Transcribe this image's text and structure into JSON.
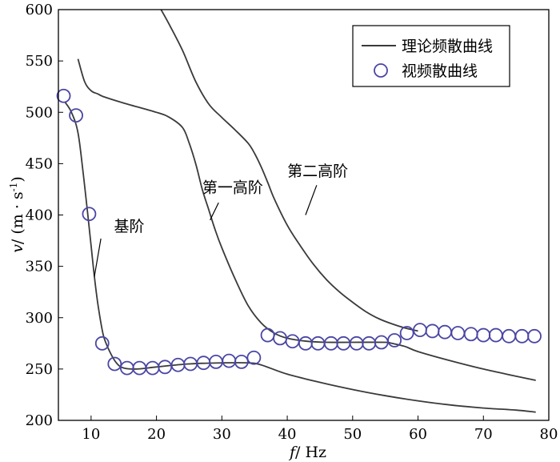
{
  "chart_data": {
    "type": "line",
    "title": "",
    "xlabel_var": "f",
    "xlabel_unit": "/ Hz",
    "ylabel_var": "v",
    "ylabel_unit_pre": "/ (m · s",
    "ylabel_unit_sup": "-1",
    "ylabel_unit_post": ")",
    "xlim": [
      5,
      80
    ],
    "ylim": [
      200,
      600
    ],
    "xticks": [
      10,
      20,
      30,
      40,
      50,
      60,
      70,
      80
    ],
    "yticks": [
      200,
      250,
      300,
      350,
      400,
      450,
      500,
      550,
      600
    ],
    "legend": {
      "position": "top-right",
      "entries": [
        "理论频散曲线",
        "视频散曲线"
      ]
    },
    "series": [
      {
        "name": "理论频散曲线 基阶",
        "style": "line",
        "x": [
          6,
          7,
          8,
          8.8,
          9.5,
          10,
          10.5,
          11,
          11.5,
          12,
          13,
          14,
          15,
          17,
          20,
          25,
          30,
          34,
          36,
          40,
          45,
          50,
          55,
          60,
          65,
          70,
          75,
          78
        ],
        "y": [
          510,
          500,
          480,
          440,
          400,
          370,
          340,
          315,
          295,
          280,
          265,
          255,
          251,
          250,
          252,
          255,
          256,
          256,
          254,
          245,
          237,
          230,
          224,
          219,
          215,
          212,
          210,
          208
        ]
      },
      {
        "name": "理论频散曲线 第一高阶",
        "style": "line",
        "x": [
          8,
          9,
          10,
          11,
          12,
          15,
          20,
          22,
          24,
          25,
          26,
          27,
          28,
          29,
          30,
          32,
          34,
          36,
          38,
          40,
          43,
          46,
          50,
          55,
          56,
          58,
          60,
          65,
          70,
          75,
          78
        ],
        "y": [
          552,
          530,
          521,
          518,
          515,
          509,
          500,
          495,
          485,
          470,
          450,
          425,
          405,
          385,
          368,
          338,
          312,
          295,
          285,
          280,
          277,
          276,
          276,
          276,
          275,
          272,
          267,
          258,
          250,
          243,
          239
        ]
      },
      {
        "name": "理论频散曲线 第二高阶",
        "style": "line",
        "x": [
          20.7,
          22,
          24,
          26,
          28,
          30,
          32,
          34,
          35,
          36,
          37,
          38,
          40,
          42,
          44,
          46,
          48,
          50,
          52,
          54,
          56,
          58,
          60
        ],
        "y": [
          600,
          585,
          560,
          530,
          508,
          495,
          483,
          470,
          460,
          447,
          432,
          416,
          390,
          370,
          352,
          337,
          325,
          315,
          306,
          299,
          294,
          290,
          287
        ]
      },
      {
        "name": "视频散曲线",
        "style": "markers",
        "x": [
          5.8,
          7.7,
          9.7,
          11.7,
          13.6,
          15.5,
          17.4,
          19.4,
          21.3,
          23.3,
          25.2,
          27.2,
          29.1,
          31.1,
          33,
          34.9,
          37,
          38.9,
          40.8,
          42.8,
          44.7,
          46.7,
          48.6,
          50.6,
          52.5,
          54.4,
          56.4,
          58.3,
          60.3,
          62.2,
          64.1,
          66.1,
          68.1,
          70,
          71.9,
          73.9,
          75.9,
          77.8
        ],
        "y": [
          516,
          497,
          401,
          275,
          255,
          251,
          251,
          251,
          252,
          254,
          255,
          256,
          257,
          258,
          257,
          261,
          283,
          280,
          277,
          275,
          275,
          275,
          275,
          275,
          275,
          276,
          278,
          285,
          288,
          287,
          286,
          285,
          284,
          283,
          283,
          282,
          282,
          282
        ]
      }
    ],
    "annotations": [
      {
        "text": "基阶",
        "x": 13.5,
        "y": 384
      },
      {
        "text": "第一高阶",
        "x": 27,
        "y": 422
      },
      {
        "text": "第二高阶",
        "x": 40,
        "y": 438
      }
    ],
    "annotation_leaders": [
      {
        "from": [
          11.5,
          377
        ],
        "to": [
          10.5,
          340
        ]
      },
      {
        "from": [
          29.5,
          412
        ],
        "to": [
          28.2,
          395
        ]
      },
      {
        "from": [
          44.5,
          429
        ],
        "to": [
          42.8,
          400
        ]
      }
    ]
  },
  "colors": {
    "line": "#3a3a3a",
    "marker": "#4a46a4",
    "axis": "#000000"
  }
}
